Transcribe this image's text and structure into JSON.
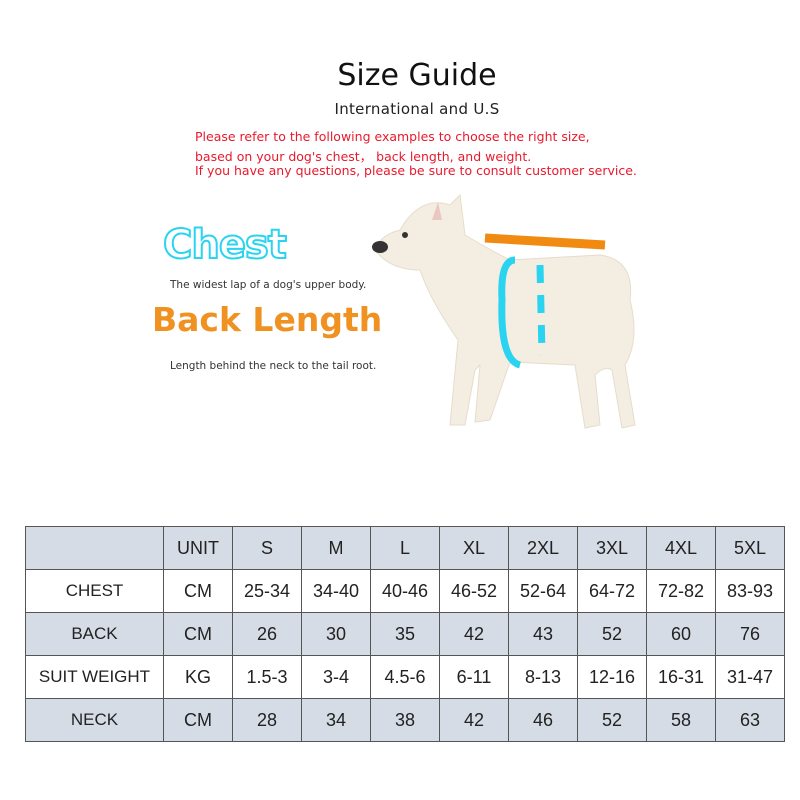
{
  "title": "Size Guide",
  "subtitle": "International  and  U.S",
  "notes": [
    "Please refer to the following examples to choose the right size,",
    "based on your dog's chest，  back length, and weight.",
    "If you have any questions, please be sure to consult customer service."
  ],
  "chest": {
    "heading": "Chest",
    "description": "The widest lap of a dog's upper body.",
    "color": "#2ad4f0"
  },
  "back_length": {
    "heading": "Back Length",
    "description": "Length behind the neck to the tail root.",
    "color": "#f09221"
  },
  "table": {
    "header": [
      "",
      "UNIT",
      "S",
      "M",
      "L",
      "XL",
      "2XL",
      "3XL",
      "4XL",
      "5XL"
    ],
    "rows": [
      [
        "CHEST",
        "CM",
        "25-34",
        "34-40",
        "40-46",
        "46-52",
        "52-64",
        "64-72",
        "72-82",
        "83-93"
      ],
      [
        "BACK",
        "CM",
        "26",
        "30",
        "35",
        "42",
        "43",
        "52",
        "60",
        "76"
      ],
      [
        "SUIT WEIGHT",
        "KG",
        "1.5-3",
        "3-4",
        "4.5-6",
        "6-11",
        "8-13",
        "12-16",
        "16-31",
        "31-47"
      ],
      [
        "NECK",
        "CM",
        "28",
        "34",
        "38",
        "42",
        "46",
        "52",
        "58",
        "63"
      ]
    ],
    "shade_color": "#d6dce5"
  }
}
